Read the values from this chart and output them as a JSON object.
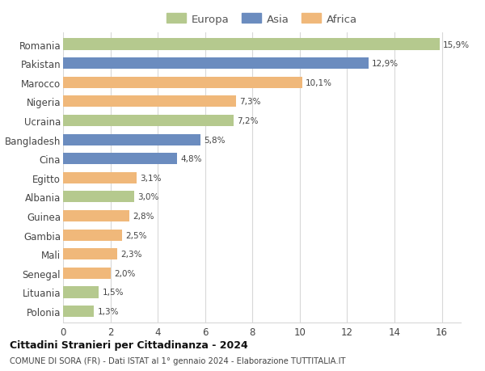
{
  "categories": [
    "Romania",
    "Pakistan",
    "Marocco",
    "Nigeria",
    "Ucraina",
    "Bangladesh",
    "Cina",
    "Egitto",
    "Albania",
    "Guinea",
    "Gambia",
    "Mali",
    "Senegal",
    "Lituania",
    "Polonia"
  ],
  "values": [
    15.9,
    12.9,
    10.1,
    7.3,
    7.2,
    5.8,
    4.8,
    3.1,
    3.0,
    2.8,
    2.5,
    2.3,
    2.0,
    1.5,
    1.3
  ],
  "labels": [
    "15,9%",
    "12,9%",
    "10,1%",
    "7,3%",
    "7,2%",
    "5,8%",
    "4,8%",
    "3,1%",
    "3,0%",
    "2,8%",
    "2,5%",
    "2,3%",
    "2,0%",
    "1,5%",
    "1,3%"
  ],
  "continents": [
    "Europa",
    "Asia",
    "Africa",
    "Africa",
    "Europa",
    "Asia",
    "Asia",
    "Africa",
    "Europa",
    "Africa",
    "Africa",
    "Africa",
    "Africa",
    "Europa",
    "Europa"
  ],
  "colors": {
    "Europa": "#b5c98e",
    "Asia": "#6b8cbf",
    "Africa": "#f0b87a"
  },
  "xlim": [
    0,
    16.8
  ],
  "xticks": [
    0,
    2,
    4,
    6,
    8,
    10,
    12,
    14,
    16
  ],
  "title": "Cittadini Stranieri per Cittadinanza - 2024",
  "subtitle": "COMUNE DI SORA (FR) - Dati ISTAT al 1° gennaio 2024 - Elaborazione TUTTITALIA.IT",
  "background_color": "#ffffff",
  "grid_color": "#d8d8d8",
  "bar_height": 0.6
}
